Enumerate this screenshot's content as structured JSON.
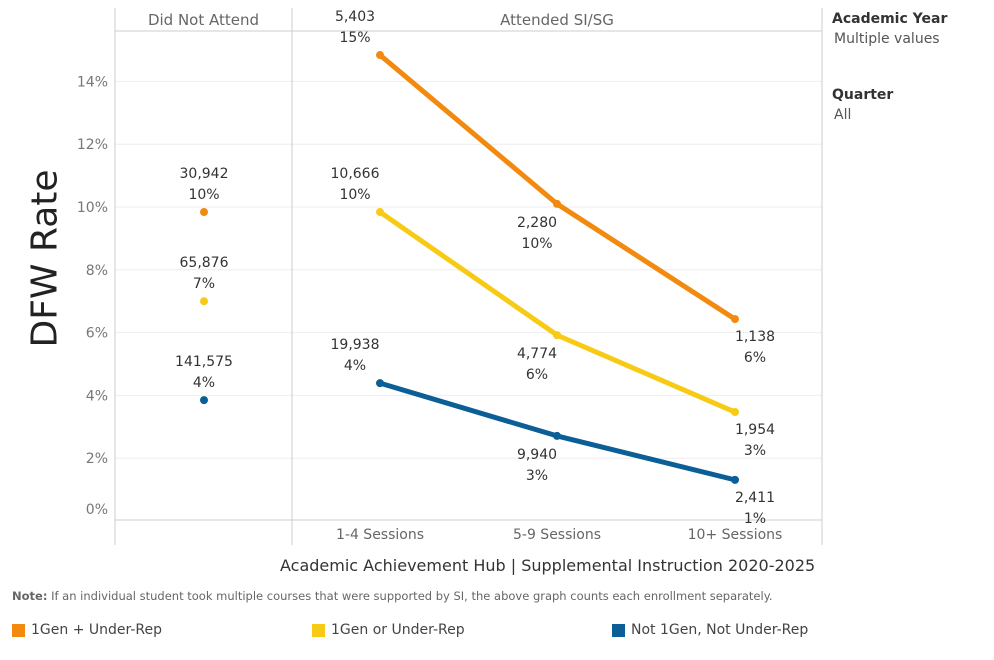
{
  "chart_data": {
    "type": "line",
    "ylabel": "DFW Rate",
    "ylim": [
      0,
      15.5
    ],
    "yticks": [
      "0%",
      "2%",
      "4%",
      "6%",
      "8%",
      "10%",
      "12%",
      "14%"
    ],
    "ytick_values": [
      0,
      2,
      4,
      6,
      8,
      10,
      12,
      14
    ],
    "grid": true,
    "panels": [
      {
        "header": "Did Not Attend",
        "categories": [
          ""
        ]
      },
      {
        "header": "Attended SI/SG",
        "categories": [
          "1-4 Sessions",
          "5-9 Sessions",
          "10+ Sessions"
        ]
      }
    ],
    "series": [
      {
        "name": "1Gen + Under-Rep",
        "color": "#F28A10",
        "did_not_attend": {
          "value": 9.84,
          "count": "30,942",
          "pct": "10%"
        },
        "attended": [
          {
            "value": 14.84,
            "count": "5,403",
            "pct": "15%"
          },
          {
            "value": 10.1,
            "count": "2,280",
            "pct": "10%"
          },
          {
            "value": 6.43,
            "count": "1,138",
            "pct": "6%"
          }
        ]
      },
      {
        "name": "1Gen or Under-Rep",
        "color": "#F7CB15",
        "did_not_attend": {
          "value": 7.0,
          "count": "65,876",
          "pct": "7%"
        },
        "attended": [
          {
            "value": 9.84,
            "count": "10,666",
            "pct": "10%"
          },
          {
            "value": 5.92,
            "count": "4,774",
            "pct": "6%"
          },
          {
            "value": 3.47,
            "count": "1,954",
            "pct": "3%"
          }
        ]
      },
      {
        "name": "Not 1Gen, Not Under-Rep",
        "color": "#0B5E96",
        "did_not_attend": {
          "value": 3.85,
          "count": "141,575",
          "pct": "4%"
        },
        "attended": [
          {
            "value": 4.39,
            "count": "19,938",
            "pct": "4%"
          },
          {
            "value": 2.71,
            "count": "9,940",
            "pct": "3%"
          },
          {
            "value": 1.31,
            "count": "2,411",
            "pct": "1%"
          }
        ]
      }
    ],
    "caption": "Academic Achievement Hub | Supplemental Instruction 2020-2025"
  },
  "filters": [
    {
      "title": "Academic Year",
      "value": "Multiple values"
    },
    {
      "title": "Quarter",
      "value": "All"
    }
  ],
  "note": {
    "label": "Note:",
    "text": " If an individual student took multiple courses that were supported by SI, the above graph counts each enrollment separately."
  }
}
